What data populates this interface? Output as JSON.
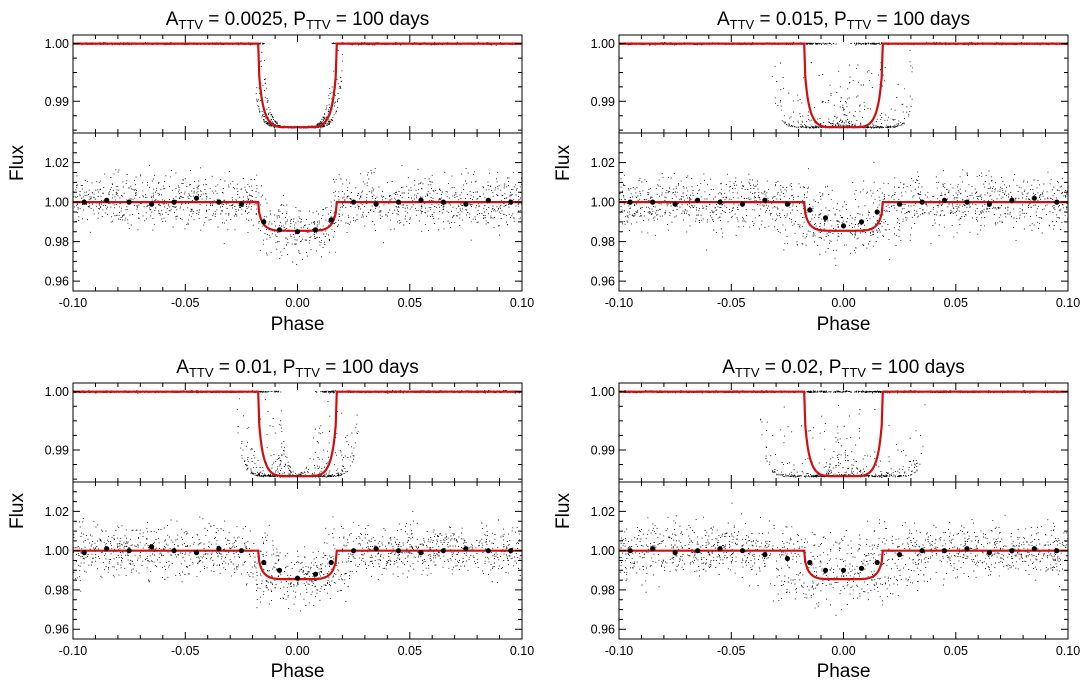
{
  "figure": {
    "ylabel": "Flux",
    "xlabel": "Phase"
  },
  "style": {
    "model_color": "#d01010",
    "data_color": "#000000",
    "background": "#ffffff"
  },
  "shared_axes": {
    "x_range": [
      -0.1,
      0.1
    ],
    "x_ticks": [
      -0.1,
      -0.05,
      0.0,
      0.05,
      0.1
    ],
    "x_tick_labels": [
      "-0.10",
      "-0.05",
      "0.00",
      "0.05",
      "0.10"
    ],
    "top_y_range": [
      0.9845,
      1.0015
    ],
    "top_y_ticks": [
      0.99,
      1.0
    ],
    "top_y_tick_labels": [
      "0.99",
      "1.00"
    ],
    "bottom_y_range": [
      0.955,
      1.035
    ],
    "bottom_y_ticks": [
      0.96,
      0.98,
      1.0,
      1.02
    ],
    "bottom_y_tick_labels": [
      "0.96",
      "0.98",
      "1.00",
      "1.02"
    ]
  },
  "chart_data": [
    {
      "type": "scatter",
      "title_prefix": "A",
      "title_sub1": "TTV",
      "title_mid": " = 0.0025, P",
      "title_sub2": "TTV",
      "title_suffix": " = 100 days",
      "amplitude": 0.0025,
      "period_days": 100,
      "xlabel": "Phase",
      "ylabel": "Flux",
      "model": {
        "name": "transit model",
        "depth": 0.0145,
        "t14_half": 0.0175,
        "t23_half": 0
      },
      "binned_points": {
        "x": [
          -0.095,
          -0.085,
          -0.075,
          -0.065,
          -0.055,
          -0.045,
          -0.035,
          -0.025,
          -0.015,
          -0.008,
          0.0,
          0.008,
          0.015,
          0.025,
          0.035,
          0.045,
          0.055,
          0.065,
          0.075,
          0.085,
          0.095
        ],
        "y": [
          1.0,
          1.001,
          1.0,
          0.999,
          1.0,
          1.002,
          1.0,
          0.999,
          0.99,
          0.986,
          0.985,
          0.986,
          0.991,
          1.0,
          0.999,
          1.0,
          1.001,
          1.0,
          0.999,
          1.001,
          1.0
        ]
      }
    },
    {
      "type": "scatter",
      "title_prefix": "A",
      "title_sub1": "TTV",
      "title_mid": " = 0.015, P",
      "title_sub2": "TTV",
      "title_suffix": " = 100 days",
      "amplitude": 0.015,
      "period_days": 100,
      "xlabel": "Phase",
      "ylabel": "Flux",
      "model": {
        "name": "transit model",
        "depth": 0.0145,
        "t14_half": 0.0175,
        "t23_half": 0
      },
      "binned_points": {
        "x": [
          -0.095,
          -0.085,
          -0.075,
          -0.065,
          -0.055,
          -0.045,
          -0.035,
          -0.025,
          -0.015,
          -0.008,
          0.0,
          0.008,
          0.015,
          0.025,
          0.035,
          0.045,
          0.055,
          0.065,
          0.075,
          0.085,
          0.095
        ],
        "y": [
          1.0,
          1.0,
          0.999,
          1.001,
          1.0,
          0.999,
          1.001,
          0.999,
          0.996,
          0.992,
          0.988,
          0.99,
          0.995,
          0.999,
          1.0,
          1.001,
          1.0,
          0.999,
          1.001,
          1.002,
          1.0
        ]
      }
    },
    {
      "type": "scatter",
      "title_prefix": "A",
      "title_sub1": "TTV",
      "title_mid": " = 0.01, P",
      "title_sub2": "TTV",
      "title_suffix": " = 100 days",
      "amplitude": 0.01,
      "period_days": 100,
      "xlabel": "Phase",
      "ylabel": "Flux",
      "model": {
        "name": "transit model",
        "depth": 0.0145,
        "t14_half": 0.0175,
        "t23_half": 0
      },
      "binned_points": {
        "x": [
          -0.095,
          -0.085,
          -0.075,
          -0.065,
          -0.055,
          -0.045,
          -0.035,
          -0.025,
          -0.015,
          -0.008,
          0.0,
          0.008,
          0.015,
          0.025,
          0.035,
          0.045,
          0.055,
          0.065,
          0.075,
          0.085,
          0.095
        ],
        "y": [
          0.999,
          1.001,
          1.0,
          1.002,
          1.0,
          0.999,
          1.001,
          1.0,
          0.994,
          0.99,
          0.986,
          0.988,
          0.994,
          1.0,
          1.001,
          1.0,
          0.999,
          1.0,
          1.001,
          1.0,
          1.0
        ]
      }
    },
    {
      "type": "scatter",
      "title_prefix": "A",
      "title_sub1": "TTV",
      "title_mid": " = 0.02, P",
      "title_sub2": "TTV",
      "title_suffix": " = 100 days",
      "amplitude": 0.02,
      "period_days": 100,
      "xlabel": "Phase",
      "ylabel": "Flux",
      "model": {
        "name": "transit model",
        "depth": 0.0145,
        "t14_half": 0.0175,
        "t23_half": 0
      },
      "binned_points": {
        "x": [
          -0.095,
          -0.085,
          -0.075,
          -0.065,
          -0.055,
          -0.045,
          -0.035,
          -0.025,
          -0.015,
          -0.008,
          0.0,
          0.008,
          0.015,
          0.025,
          0.035,
          0.045,
          0.055,
          0.065,
          0.075,
          0.085,
          0.095
        ],
        "y": [
          1.0,
          1.001,
          0.999,
          1.0,
          1.001,
          1.0,
          0.998,
          0.996,
          0.994,
          0.99,
          0.99,
          0.991,
          0.994,
          0.998,
          1.0,
          1.0,
          1.001,
          0.999,
          1.0,
          1.001,
          1.0
        ]
      }
    }
  ]
}
